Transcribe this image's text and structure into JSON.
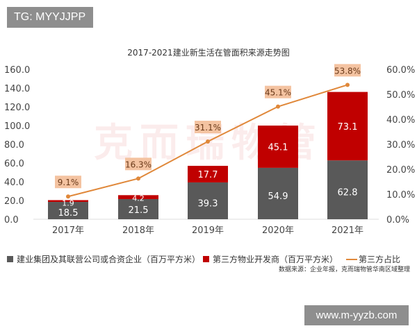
{
  "overlay": {
    "tg_label": "TG: MYYJJPP",
    "site_label": "www.m-yyzb.com",
    "watermark": "克而瑞物管"
  },
  "chart_data": {
    "type": "bar",
    "stacked": true,
    "title": "2017-2021建业新生活在管面积来源走势图",
    "categories": [
      "2017年",
      "2018年",
      "2019年",
      "2020年",
      "2021年"
    ],
    "series": [
      {
        "name": "建业集团及其联营公司或合资企业（百万平方米）",
        "type": "bar",
        "axis": "left",
        "color": "#595959",
        "values": [
          18.5,
          21.5,
          39.3,
          54.9,
          62.8
        ],
        "labels": [
          "18.5",
          "21.5",
          "39.3",
          "54.9",
          "62.8"
        ]
      },
      {
        "name": "第三方物业开发商（百万平方米）",
        "type": "bar",
        "axis": "left",
        "color": "#c00000",
        "values": [
          1.9,
          4.2,
          17.7,
          45.1,
          73.1
        ],
        "labels": [
          "1.9",
          "4.2",
          "17.7",
          "45.1",
          "73.1"
        ]
      },
      {
        "name": "第三方占比",
        "type": "line",
        "axis": "right",
        "color": "#e0883a",
        "values": [
          9.1,
          16.3,
          31.1,
          45.1,
          53.8
        ],
        "labels": [
          "9.1%",
          "16.3%",
          "31.1%",
          "45.1%",
          "53.8%"
        ]
      }
    ],
    "ylim": [
      0,
      160
    ],
    "yticks": [
      "0.0",
      "20.0",
      "40.0",
      "60.0",
      "80.0",
      "100.0",
      "120.0",
      "140.0",
      "160.0"
    ],
    "y2lim": [
      0,
      60
    ],
    "y2ticks": [
      "0.0%",
      "10.0%",
      "20.0%",
      "30.0%",
      "40.0%",
      "50.0%",
      "60.0%"
    ],
    "legend_position": "bottom",
    "grid": false,
    "source": "数据来源：企业年报，克而瑞物管华南区域整理"
  }
}
